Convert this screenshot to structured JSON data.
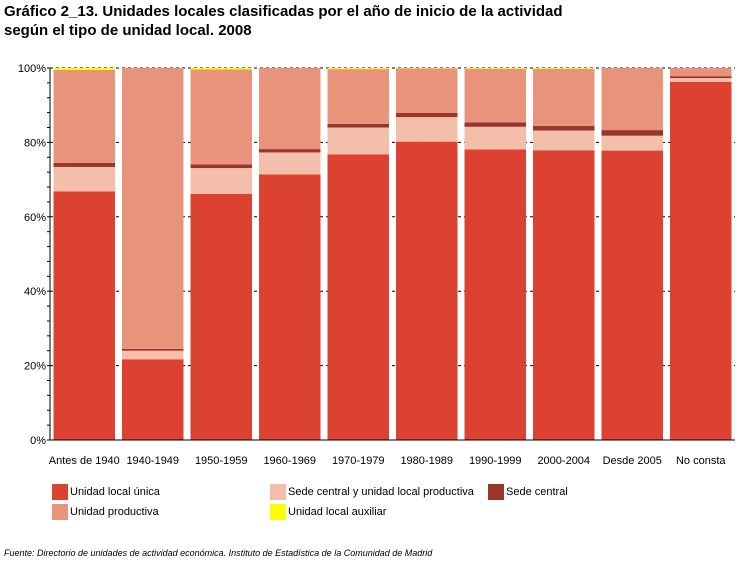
{
  "title_line1": "Gráfico 2_13. Unidades locales clasificadas por el año de inicio de la actividad",
  "title_line2": "según el tipo de unidad local. 2008",
  "source": "Fuente: Directorio de unidades de actividad económica. Instituto de Estadística de la Comunidad de Madrid",
  "chart_data": {
    "type": "bar",
    "stacked": true,
    "percent_axis": true,
    "categories": [
      "Antes de 1940",
      "1940-1949",
      "1950-1959",
      "1960-1969",
      "1970-1979",
      "1980-1989",
      "1990-1999",
      "2000-2004",
      "Desde 2005",
      "No consta"
    ],
    "series": [
      {
        "name": "Unidad local única",
        "color": "#dc4232",
        "values": [
          66.8,
          21.7,
          66.2,
          71.4,
          76.8,
          80.2,
          78.1,
          77.9,
          77.8,
          96.3
        ]
      },
      {
        "name": "Sede central y unidad local productiva",
        "color": "#f3bfaa",
        "values": [
          6.6,
          2.3,
          6.9,
          5.9,
          7.2,
          6.6,
          6.1,
          5.3,
          4.0,
          1.0
        ]
      },
      {
        "name": "Sede central",
        "color": "#9b352c",
        "values": [
          1.1,
          0.5,
          1.0,
          0.9,
          1.0,
          1.1,
          1.2,
          1.2,
          1.5,
          0.5
        ]
      },
      {
        "name": "Unidad productiva",
        "color": "#e8937c",
        "values": [
          25.0,
          75.5,
          25.5,
          21.8,
          14.7,
          12.0,
          14.4,
          15.4,
          16.7,
          2.2
        ]
      },
      {
        "name": "Unidad local auxiliar",
        "color": "#ffff00",
        "values": [
          0.5,
          0.0,
          0.4,
          0.0,
          0.3,
          0.1,
          0.2,
          0.2,
          0.0,
          0.0
        ]
      }
    ],
    "y_ticks": [
      "0%",
      "20%",
      "40%",
      "60%",
      "80%",
      "100%"
    ],
    "ylim": [
      0,
      100
    ],
    "grid": true,
    "legend_position": "bottom"
  }
}
